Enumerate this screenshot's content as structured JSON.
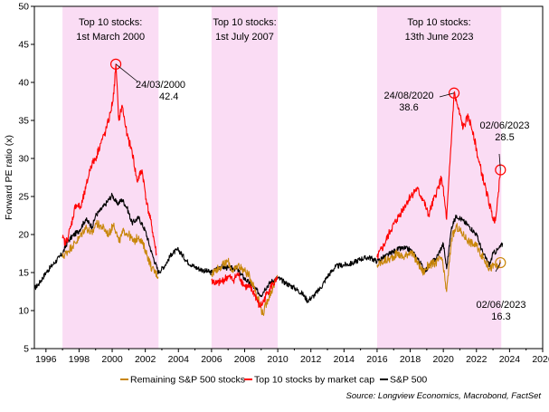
{
  "chart_data": {
    "type": "line",
    "ylabel": "Forward PE ratio (x)",
    "xlim": [
      1995.3,
      2026
    ],
    "ylim": [
      5,
      50
    ],
    "x_ticks": [
      "1996",
      "1998",
      "2000",
      "2002",
      "2004",
      "2006",
      "2008",
      "2010",
      "2012",
      "2014",
      "2016",
      "2018",
      "2020",
      "2022",
      "2024",
      "2026"
    ],
    "y_ticks": [
      "5",
      "10",
      "15",
      "20",
      "25",
      "30",
      "35",
      "40",
      "45",
      "50"
    ],
    "shaded_periods": [
      {
        "label_line1": "Top 10 stocks:",
        "label_line2": "1st March 2000",
        "start": 1997.0,
        "end": 2002.8
      },
      {
        "label_line1": "Top 10 stocks:",
        "label_line2": "1st July 2007",
        "start": 2006.0,
        "end": 2010.0
      },
      {
        "label_line1": "Top 10 stocks:",
        "label_line2": "13th June 2023",
        "start": 2016.0,
        "end": 2023.5
      }
    ],
    "series": [
      {
        "name": "S&P 500",
        "color": "#000000",
        "x": [
          1995.3,
          1995.6,
          1996.0,
          1996.4,
          1996.8,
          1997.0,
          1997.3,
          1997.6,
          1998.0,
          1998.4,
          1998.8,
          1999.0,
          1999.3,
          1999.6,
          2000.0,
          2000.3,
          2000.6,
          2000.9,
          2001.2,
          2001.6,
          2002.0,
          2002.4,
          2002.8,
          2003.2,
          2003.6,
          2004.0,
          2004.5,
          2005.0,
          2005.5,
          2006.0,
          2006.5,
          2007.0,
          2007.5,
          2008.0,
          2008.5,
          2009.0,
          2009.2,
          2009.6,
          2010.0,
          2010.5,
          2011.0,
          2011.5,
          2011.8,
          2012.2,
          2012.6,
          2013.0,
          2013.5,
          2014.0,
          2014.5,
          2015.0,
          2015.5,
          2016.0,
          2016.4,
          2016.8,
          2017.2,
          2017.6,
          2018.0,
          2018.4,
          2018.9,
          2019.2,
          2019.6,
          2020.0,
          2020.2,
          2020.5,
          2020.8,
          2021.2,
          2021.6,
          2022.0,
          2022.4,
          2022.8,
          2023.0,
          2023.3,
          2023.6
        ],
        "values": [
          12.9,
          13.6,
          15.0,
          16.0,
          17.0,
          17.5,
          19.0,
          19.8,
          20.5,
          22.0,
          21.0,
          22.5,
          23.2,
          24.0,
          25.2,
          24.0,
          24.6,
          23.5,
          21.5,
          22.2,
          20.5,
          17.5,
          15.0,
          16.0,
          17.5,
          18.0,
          16.5,
          15.7,
          15.3,
          15.0,
          15.8,
          15.6,
          15.5,
          14.2,
          13.2,
          12.0,
          12.8,
          13.8,
          14.3,
          13.6,
          13.0,
          12.2,
          11.3,
          12.0,
          13.0,
          14.5,
          15.8,
          16.0,
          16.2,
          16.8,
          17.0,
          16.5,
          17.0,
          17.5,
          18.0,
          18.2,
          18.0,
          17.0,
          15.2,
          16.0,
          17.0,
          18.8,
          15.5,
          21.0,
          22.5,
          21.8,
          21.0,
          20.0,
          17.5,
          16.0,
          17.5,
          18.0,
          18.8
        ]
      },
      {
        "name": "Top 10 stocks by market cap",
        "color": "#ff0000",
        "x": [
          1997.0,
          1997.2,
          1997.5,
          1997.8,
          1998.1,
          1998.4,
          1998.7,
          1999.0,
          1999.3,
          1999.6,
          1999.9,
          2000.1,
          2000.22,
          2000.4,
          2000.6,
          2000.9,
          2001.2,
          2001.5,
          2001.8,
          2002.1,
          2002.4,
          2002.7,
          2006.0,
          2006.3,
          2006.6,
          2007.0,
          2007.3,
          2007.6,
          2008.0,
          2008.3,
          2008.6,
          2008.9,
          2009.1,
          2009.4,
          2009.7,
          2010.0,
          2016.0,
          2016.4,
          2016.8,
          2017.2,
          2017.6,
          2018.0,
          2018.4,
          2018.8,
          2019.1,
          2019.5,
          2019.9,
          2020.2,
          2020.5,
          2020.65,
          2020.9,
          2021.2,
          2021.5,
          2021.8,
          2022.1,
          2022.5,
          2022.9,
          2023.1,
          2023.3,
          2023.45
        ],
        "values": [
          19.5,
          18.8,
          21.0,
          24.0,
          23.5,
          26.0,
          29.0,
          30.0,
          32.0,
          33.5,
          36.0,
          38.5,
          42.4,
          35.0,
          37.0,
          33.0,
          31.0,
          27.0,
          28.5,
          24.0,
          21.0,
          17.0,
          14.0,
          13.5,
          13.8,
          14.5,
          14.0,
          14.8,
          13.2,
          13.0,
          12.2,
          10.5,
          11.0,
          12.5,
          13.5,
          14.0,
          17.0,
          18.5,
          20.5,
          22.0,
          23.5,
          25.0,
          26.0,
          24.5,
          22.5,
          25.0,
          27.5,
          22.0,
          33.0,
          38.6,
          36.5,
          34.0,
          35.5,
          33.5,
          30.0,
          26.5,
          23.0,
          21.5,
          25.0,
          28.5
        ]
      },
      {
        "name": "Remaining S&P 500 stocks",
        "color": "#c8860a",
        "x": [
          1997.0,
          1997.3,
          1997.6,
          1998.0,
          1998.4,
          1998.8,
          1999.0,
          1999.4,
          1999.8,
          2000.1,
          2000.4,
          2000.7,
          2001.0,
          2001.3,
          2001.6,
          2002.0,
          2002.4,
          2002.8,
          2006.0,
          2006.3,
          2006.6,
          2007.0,
          2007.3,
          2007.6,
          2008.0,
          2008.3,
          2008.6,
          2008.9,
          2009.1,
          2009.4,
          2009.7,
          2010.0,
          2016.0,
          2016.4,
          2016.8,
          2017.2,
          2017.6,
          2018.0,
          2018.4,
          2018.8,
          2019.1,
          2019.5,
          2019.9,
          2020.2,
          2020.5,
          2020.8,
          2021.2,
          2021.6,
          2022.0,
          2022.4,
          2022.8,
          2023.1,
          2023.3,
          2023.45
        ],
        "values": [
          17.0,
          17.8,
          18.5,
          19.5,
          21.0,
          20.0,
          21.5,
          21.0,
          20.0,
          21.5,
          19.0,
          20.5,
          20.0,
          19.0,
          19.8,
          18.0,
          15.5,
          14.5,
          14.8,
          15.5,
          15.8,
          16.5,
          15.0,
          16.0,
          15.2,
          14.5,
          13.0,
          11.0,
          9.5,
          11.5,
          13.0,
          14.5,
          16.0,
          16.5,
          16.8,
          17.5,
          17.0,
          17.8,
          16.5,
          15.0,
          16.0,
          16.2,
          17.0,
          12.5,
          19.5,
          21.0,
          20.0,
          19.0,
          18.5,
          17.0,
          15.5,
          16.0,
          15.5,
          16.3
        ]
      }
    ],
    "annotations": [
      {
        "date": "24/03/2000",
        "value": "42.4",
        "x": 2000.22,
        "y": 42.4,
        "color": "#ff0000"
      },
      {
        "date": "24/08/2020",
        "value": "38.6",
        "x": 2020.65,
        "y": 38.6,
        "color": "#ff0000"
      },
      {
        "date": "02/06/2023",
        "value": "28.5",
        "x": 2023.45,
        "y": 28.5,
        "color": "#ff0000"
      },
      {
        "date": "02/06/2023",
        "value": "16.3",
        "x": 2023.45,
        "y": 16.3,
        "color": "#c8860a"
      }
    ],
    "legend": [
      {
        "label": "Remaining S&P 500 stocks",
        "color": "#c8860a"
      },
      {
        "label": "Top 10 stocks by market cap",
        "color": "#ff0000"
      },
      {
        "label": "S&P 500",
        "color": "#000000"
      }
    ],
    "legend_position": "bottom",
    "source": "Source: Longview Economics, Macrobond, FactSet",
    "shade_color": "#fadcf4"
  }
}
